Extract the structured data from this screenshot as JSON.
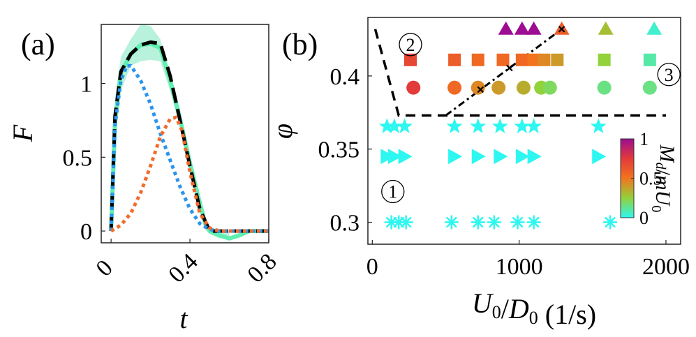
{
  "chart_data": [
    {
      "panel_label": "(a)",
      "type": "line",
      "xlabel": "t",
      "ylabel": "F",
      "xlim": [
        -0.05,
        0.8
      ],
      "ylim": [
        -0.08,
        1.4
      ],
      "xticks": [
        "0",
        "0.4",
        "0.8"
      ],
      "xtick_values": [
        0,
        0.4,
        0.8
      ],
      "yticks": [
        "0",
        "0.5",
        "1"
      ],
      "ytick_values": [
        0,
        0.5,
        1
      ],
      "band": {
        "name": "green-band",
        "color": "#b8f2dc",
        "x": [
          0,
          0.02,
          0.05,
          0.1,
          0.15,
          0.2,
          0.25,
          0.3,
          0.35,
          0.4,
          0.45,
          0.48,
          0.5,
          0.55,
          0.6
        ],
        "upper": [
          0,
          0.9,
          1.18,
          1.3,
          1.4,
          1.39,
          1.3,
          1.05,
          0.82,
          0.5,
          0.22,
          0.08,
          0.02,
          0.01,
          0.0
        ],
        "lower": [
          0,
          0.6,
          0.95,
          1.12,
          1.15,
          1.16,
          1.15,
          0.95,
          0.7,
          0.42,
          0.14,
          0.01,
          -0.02,
          -0.05,
          -0.04
        ]
      },
      "series": [
        {
          "name": "total-force",
          "color": "#5fefb0",
          "style": "solid",
          "x": [
            0,
            0.02,
            0.05,
            0.1,
            0.15,
            0.2,
            0.25,
            0.3,
            0.35,
            0.4,
            0.45,
            0.48,
            0.5,
            0.55,
            0.6,
            0.65,
            0.7,
            0.8
          ],
          "y": [
            0,
            0.75,
            1.07,
            1.2,
            1.26,
            1.27,
            1.24,
            1.02,
            0.76,
            0.46,
            0.19,
            0.04,
            0.0,
            -0.03,
            -0.05,
            -0.03,
            0.0,
            0.0
          ]
        },
        {
          "name": "model-total",
          "color": "#000000",
          "style": "dashed",
          "x": [
            0,
            0.02,
            0.05,
            0.1,
            0.15,
            0.2,
            0.25,
            0.3,
            0.35,
            0.4,
            0.45,
            0.5,
            0.55,
            0.6,
            0.65,
            0.7,
            0.8
          ],
          "y": [
            0,
            0.78,
            1.08,
            1.2,
            1.26,
            1.28,
            1.27,
            1.05,
            0.75,
            0.44,
            0.15,
            0.0,
            0.0,
            0.0,
            0.0,
            0.0,
            0.0
          ]
        },
        {
          "name": "component-blue",
          "color": "#2b95ec",
          "style": "dotted",
          "x": [
            0,
            0.02,
            0.05,
            0.08,
            0.1,
            0.15,
            0.2,
            0.25,
            0.3,
            0.35,
            0.4,
            0.45,
            0.5,
            0.55,
            0.6,
            0.7,
            0.8
          ],
          "y": [
            0,
            0.72,
            1.02,
            1.12,
            1.12,
            1.02,
            0.86,
            0.66,
            0.48,
            0.3,
            0.15,
            0.05,
            0.01,
            0.0,
            0.0,
            0.0,
            0.0
          ]
        },
        {
          "name": "component-orange",
          "color": "#f26b2d",
          "style": "dotted",
          "x": [
            0,
            0.05,
            0.1,
            0.15,
            0.2,
            0.25,
            0.3,
            0.33,
            0.36,
            0.4,
            0.45,
            0.5,
            0.55,
            0.6,
            0.7,
            0.8
          ],
          "y": [
            0,
            0.04,
            0.12,
            0.26,
            0.44,
            0.64,
            0.76,
            0.77,
            0.68,
            0.4,
            0.12,
            0.02,
            0.0,
            0.0,
            0.0,
            0.0
          ]
        }
      ]
    },
    {
      "panel_label": "(b)",
      "type": "scatter",
      "xlabel": "U0/D0 (1/s)",
      "ylabel": "φ",
      "xlim": [
        -30,
        2100
      ],
      "ylim": [
        0.285,
        0.44
      ],
      "xticks": [
        "0",
        "1000",
        "2000"
      ],
      "xtick_values": [
        0,
        1000,
        2000
      ],
      "yticks": [
        "0.3",
        "0.35",
        "0.4"
      ],
      "ytick_values": [
        0.3,
        0.35,
        0.4
      ],
      "regions": [
        "1",
        "2",
        "3"
      ],
      "region_positions": [
        {
          "x": 140,
          "y": 0.321
        },
        {
          "x": 260,
          "y": 0.4215
        },
        {
          "x": 2020,
          "y": 0.401
        }
      ],
      "colorbar": {
        "label": "Md/mU0",
        "min": 0,
        "max": 1,
        "ticks": [
          "0",
          "0.5",
          "1"
        ],
        "tick_values": [
          0,
          0.5,
          1
        ],
        "colormap": [
          "#2df7f0",
          "#92d23a",
          "#f2741e",
          "#e33a3a",
          "#9c0d92"
        ]
      },
      "boundary_dashed": {
        "x": [
          20,
          180,
          2000
        ],
        "y": [
          0.432,
          0.373,
          0.373
        ]
      },
      "boundary_dashdot": {
        "x": [
          500,
          1290
        ],
        "y": [
          0.373,
          0.432
        ]
      },
      "series": [
        {
          "name": "triangles",
          "marker": "triangle",
          "phi": 0.432,
          "x": [
            910,
            1020,
            1100,
            1290,
            1590,
            1920
          ],
          "md": [
            1.0,
            1.0,
            1.0,
            0.6,
            0.3,
            0.05
          ]
        },
        {
          "name": "squares",
          "marker": "square",
          "phi": 0.411,
          "x": [
            260,
            560,
            720,
            890,
            1020,
            1100,
            1170,
            1260,
            1580,
            1890
          ],
          "md": [
            0.7,
            0.6,
            0.55,
            0.55,
            0.55,
            0.5,
            0.45,
            0.4,
            0.25,
            0.1
          ]
        },
        {
          "name": "circles",
          "marker": "circle",
          "phi": 0.392,
          "x": [
            280,
            560,
            720,
            860,
            1030,
            1150,
            1210,
            1580,
            1890
          ],
          "md": [
            0.75,
            0.55,
            0.45,
            0.4,
            0.35,
            0.25,
            0.2,
            0.15,
            0.15
          ]
        },
        {
          "name": "stars",
          "marker": "star",
          "phi": 0.3655,
          "x": [
            100,
            150,
            220,
            560,
            720,
            870,
            1020,
            1100,
            1540
          ],
          "md": [
            0.0,
            0.0,
            0.0,
            0.0,
            0.0,
            0.0,
            0.0,
            0.0,
            0.0
          ]
        },
        {
          "name": "right-triangles",
          "marker": "right-triangle",
          "phi": 0.345,
          "x": [
            100,
            150,
            220,
            560,
            720,
            870,
            1020,
            1100,
            1540
          ],
          "md": [
            0.0,
            0.0,
            0.0,
            0.0,
            0.0,
            0.0,
            0.0,
            0.0,
            0.0
          ]
        },
        {
          "name": "asterisks",
          "marker": "asterisk",
          "phi": 0.3,
          "x": [
            130,
            180,
            230,
            540,
            720,
            830,
            990,
            1100,
            1620
          ],
          "md": [
            0.0,
            0.0,
            0.0,
            0.0,
            0.0,
            0.0,
            0.0,
            0.0,
            0.0
          ]
        }
      ]
    }
  ]
}
